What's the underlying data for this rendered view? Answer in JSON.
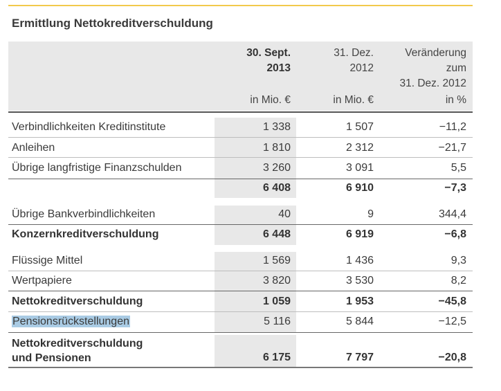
{
  "title": "Ermittlung Nettokreditverschuldung",
  "columns": [
    {
      "header": [
        "30. Sept.",
        "2013"
      ],
      "unit": "in Mio. €",
      "bold": true
    },
    {
      "header": [
        "31. Dez.",
        "2012"
      ],
      "unit": "in Mio. €",
      "bold": false
    },
    {
      "header": [
        "Veränderung",
        "zum",
        "31. Dez. 2012"
      ],
      "unit": "in %",
      "bold": false
    }
  ],
  "rows": [
    {
      "label": "Verbindlichkeiten Kreditinstitute",
      "v1": "1 338",
      "v2": "1 507",
      "v3": "−11,2"
    },
    {
      "label": "Anleihen",
      "v1": "1 810",
      "v2": "2 312",
      "v3": "−21,7"
    },
    {
      "label": "Übrige langfristige Finanzschulden",
      "v1": "3 260",
      "v2": "3 091",
      "v3": "5,5"
    },
    {
      "label": "",
      "v1": "6 408",
      "v2": "6 910",
      "v3": "−7,3"
    },
    {
      "label": "Übrige Bankverbindlichkeiten",
      "v1": "40",
      "v2": "9",
      "v3": "344,4"
    },
    {
      "label": "Konzernkreditverschuldung",
      "v1": "6 448",
      "v2": "6 919",
      "v3": "−6,8"
    },
    {
      "label": "Flüssige Mittel",
      "v1": "1 569",
      "v2": "1 436",
      "v3": "9,3"
    },
    {
      "label": "Wertpapiere",
      "v1": "3 820",
      "v2": "3 530",
      "v3": "8,2"
    },
    {
      "label": "Nettokreditverschuldung",
      "v1": "1 059",
      "v2": "1 953",
      "v3": "−45,8"
    },
    {
      "label": "Pensionsrückstellungen",
      "v1": "5 116",
      "v2": "5 844",
      "v3": "−12,5"
    },
    {
      "label": [
        "Nettokreditverschuldung",
        "und Pensionen"
      ],
      "v1": "6 175",
      "v2": "7 797",
      "v3": "−20,8"
    }
  ],
  "colors": {
    "accent_rule": "#f2c94c",
    "header_bg": "#e8e8e8",
    "highlight": "#a9cbe4"
  }
}
